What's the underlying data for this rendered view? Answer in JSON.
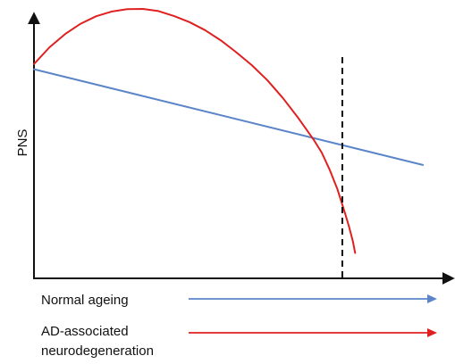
{
  "chart_data": {
    "type": "line",
    "title": "",
    "xlabel": "",
    "ylabel": "PNS",
    "grid": false,
    "legend_placement": "bottom",
    "xlim": [
      0,
      100
    ],
    "ylim": [
      0,
      100
    ],
    "axis_arrows": true,
    "series": [
      {
        "key": "normal",
        "name": "Normal ageing",
        "color": "#5b85c8",
        "points": [
          [
            0,
            76
          ],
          [
            100,
            39
          ]
        ]
      },
      {
        "key": "ad",
        "name": "AD-associated neurodegeneration",
        "name_lines": [
          "AD-associated",
          "neurodegeneration"
        ],
        "color": "#e02020",
        "points": [
          [
            0,
            78
          ],
          [
            4,
            84.5
          ],
          [
            8,
            89.6
          ],
          [
            12,
            93.6
          ],
          [
            16,
            96.5
          ],
          [
            20,
            98.3
          ],
          [
            24,
            99.2
          ],
          [
            28,
            99.3
          ],
          [
            32,
            98.5
          ],
          [
            36,
            96.6
          ],
          [
            40,
            94.2
          ],
          [
            44,
            91.1
          ],
          [
            48,
            87.2
          ],
          [
            52,
            82.6
          ],
          [
            56,
            77.6
          ],
          [
            60,
            71.8
          ],
          [
            64,
            64.9
          ],
          [
            68,
            57.1
          ],
          [
            72,
            48.6
          ],
          [
            74,
            43.8
          ],
          [
            76,
            37.3
          ],
          [
            78,
            29.8
          ],
          [
            80,
            20.3
          ],
          [
            81,
            15.2
          ],
          [
            82,
            9.6
          ],
          [
            82.6,
            5.0
          ]
        ]
      }
    ],
    "annotations": [
      {
        "type": "vline",
        "x": 79.3,
        "style": "dashed",
        "color": "#111111"
      }
    ]
  }
}
